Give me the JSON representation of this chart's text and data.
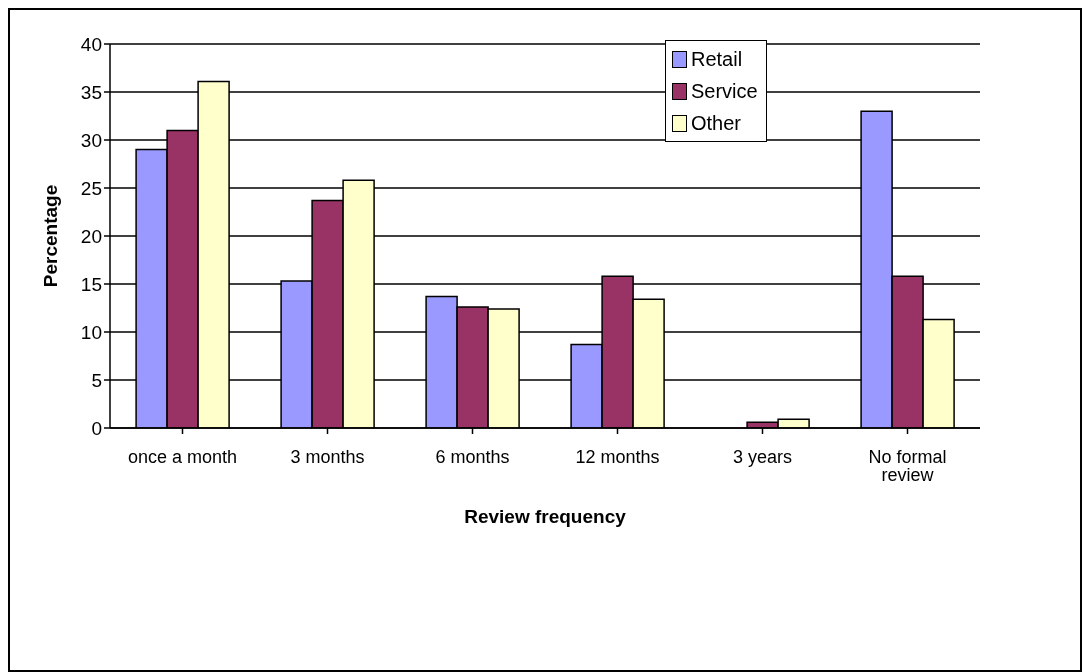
{
  "chart_data": {
    "type": "bar",
    "xlabel": "Review frequency",
    "ylabel": "Percentage",
    "categories": [
      "once a month",
      "3 months",
      "6 months",
      "12 months",
      "3 years",
      "No formal review"
    ],
    "series": [
      {
        "name": "Retail",
        "color": "#9999ff",
        "values": [
          29,
          15.3,
          13.7,
          8.7,
          0,
          33
        ]
      },
      {
        "name": "Service",
        "color": "#993366",
        "values": [
          31,
          23.7,
          12.6,
          15.8,
          0.6,
          15.8
        ]
      },
      {
        "name": "Other",
        "color": "#ffffcc",
        "values": [
          36.1,
          25.8,
          12.4,
          13.4,
          0.9,
          11.3
        ]
      }
    ],
    "ylim": [
      0,
      40
    ],
    "yticks": [
      0,
      5,
      10,
      15,
      20,
      25,
      30,
      35,
      40
    ],
    "grid": "y",
    "legend": "top right"
  }
}
